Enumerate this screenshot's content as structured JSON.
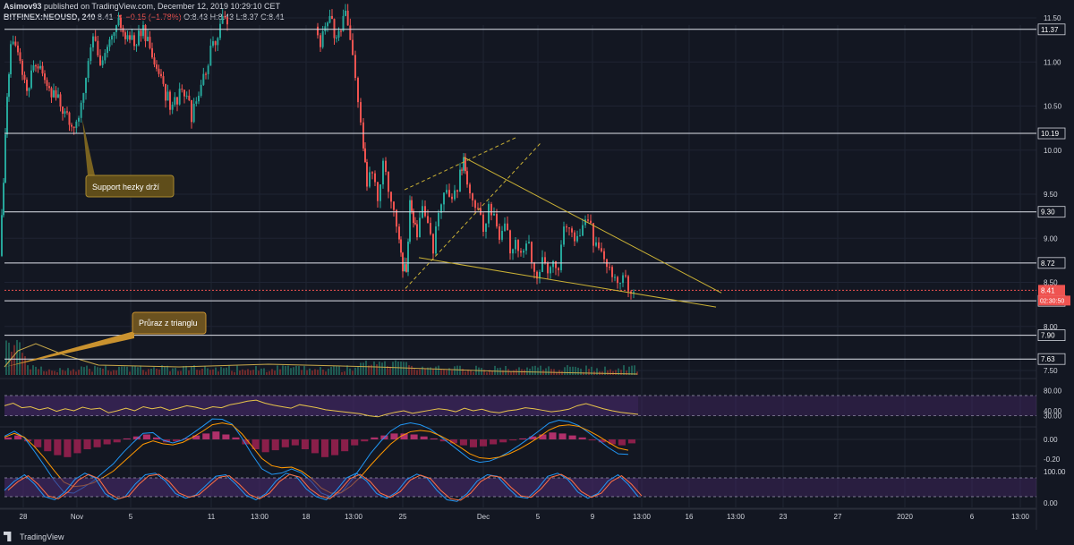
{
  "header": {
    "author": "Asimov93",
    "published": "published on TradingView.com, December 12, 2019 10:29:10 CET",
    "symbol": "BITFINEX:NEOUSD, 240",
    "last": "8.41",
    "change_arrow": "▼",
    "change": "−0.15 (−1.78%)",
    "ohlc": "O:8.43 H:8.43 L:8.37 C:8.41"
  },
  "footer": {
    "brand": "TradingView"
  },
  "colors": {
    "bg": "#131722",
    "up": "#26a69a",
    "down": "#ef5350",
    "line": "#ffffff",
    "trend": "#c9b035",
    "rsi": "#e6c34a",
    "band": "#4a2a6e"
  },
  "chart_data": [
    {
      "type": "candlestick",
      "name": "price",
      "ylim": [
        7.5,
        11.5
      ],
      "y_ticks": [
        "11.50",
        "11.00",
        "10.50",
        "10.00",
        "9.50",
        "9.00",
        "8.50",
        "8.00",
        "7.50"
      ],
      "x_ticks": [
        "28",
        "Nov",
        "5",
        "11",
        "13:00",
        "18",
        "13:00",
        "25",
        "Dec",
        "5",
        "9",
        "13:00",
        "16",
        "13:00",
        "23",
        "27",
        "2020",
        "6",
        "13:00"
      ],
      "levels": [
        "11.37",
        "10.19",
        "9.30",
        "8.72",
        "8.29",
        "7.90",
        "7.63"
      ],
      "last_price": "8.41",
      "countdown": "02:30:50",
      "close_path": [
        [
          0,
          8.8
        ],
        [
          4,
          9.6
        ],
        [
          8,
          10.6
        ],
        [
          12,
          11.2
        ],
        [
          20,
          11.1
        ],
        [
          30,
          10.7
        ],
        [
          40,
          11.0
        ],
        [
          50,
          10.8
        ],
        [
          60,
          10.6
        ],
        [
          70,
          10.5
        ],
        [
          80,
          10.3
        ],
        [
          88,
          10.4
        ],
        [
          96,
          10.9
        ],
        [
          104,
          11.3
        ],
        [
          112,
          10.9
        ],
        [
          120,
          11.2
        ],
        [
          130,
          11.5
        ],
        [
          140,
          11.3
        ],
        [
          150,
          11.2
        ],
        [
          160,
          11.4
        ],
        [
          170,
          11.0
        ],
        [
          180,
          10.8
        ],
        [
          190,
          10.5
        ],
        [
          198,
          10.6
        ],
        [
          206,
          10.7
        ],
        [
          214,
          10.4
        ],
        [
          222,
          10.6
        ],
        [
          230,
          10.9
        ],
        [
          238,
          11.2
        ],
        [
          246,
          11.4
        ],
        [
          254,
          11.5
        ],
        [
          352,
          11.4
        ],
        [
          358,
          11.2
        ],
        [
          366,
          11.5
        ],
        [
          376,
          11.3
        ],
        [
          386,
          11.5
        ],
        [
          394,
          11.0
        ],
        [
          400,
          10.6
        ],
        [
          406,
          10.0
        ],
        [
          410,
          9.6
        ],
        [
          416,
          9.8
        ],
        [
          422,
          9.5
        ],
        [
          428,
          9.9
        ],
        [
          434,
          9.6
        ],
        [
          440,
          9.4
        ],
        [
          446,
          9.0
        ],
        [
          450,
          8.7
        ],
        [
          454,
          8.55
        ],
        [
          458,
          9.4
        ],
        [
          462,
          9.2
        ],
        [
          466,
          9.0
        ],
        [
          472,
          9.3
        ],
        [
          478,
          9.1
        ],
        [
          484,
          8.9
        ],
        [
          490,
          9.3
        ],
        [
          496,
          9.6
        ],
        [
          502,
          9.4
        ],
        [
          508,
          9.5
        ],
        [
          514,
          9.7
        ],
        [
          518,
          9.9
        ],
        [
          522,
          9.6
        ],
        [
          528,
          9.5
        ],
        [
          534,
          9.3
        ],
        [
          540,
          9.1
        ],
        [
          546,
          9.4
        ],
        [
          552,
          9.2
        ],
        [
          558,
          9.0
        ],
        [
          564,
          9.1
        ],
        [
          570,
          8.9
        ],
        [
          576,
          9.0
        ],
        [
          582,
          8.85
        ],
        [
          588,
          8.95
        ],
        [
          594,
          8.8
        ],
        [
          600,
          8.6
        ],
        [
          606,
          8.7
        ],
        [
          612,
          8.65
        ],
        [
          618,
          8.8
        ],
        [
          624,
          8.7
        ],
        [
          630,
          9.1
        ],
        [
          636,
          9.2
        ],
        [
          642,
          9.0
        ],
        [
          648,
          8.95
        ],
        [
          654,
          9.2
        ],
        [
          660,
          9.1
        ],
        [
          666,
          8.9
        ],
        [
          672,
          8.8
        ],
        [
          678,
          8.75
        ],
        [
          684,
          8.6
        ],
        [
          690,
          8.55
        ],
        [
          696,
          8.6
        ],
        [
          702,
          8.45
        ],
        [
          708,
          8.41
        ]
      ],
      "trendlines": [
        {
          "style": "solid",
          "points": [
            [
              518,
              9.92
            ],
            [
              806,
              8.38
            ]
          ]
        },
        {
          "style": "solid",
          "points": [
            [
              468,
              8.78
            ],
            [
              800,
              8.22
            ]
          ]
        },
        {
          "style": "dashed",
          "points": [
            [
              452,
              9.55
            ],
            [
              578,
              10.15
            ]
          ]
        },
        {
          "style": "dashed",
          "points": [
            [
              453,
              8.43
            ],
            [
              604,
              10.08
            ]
          ]
        }
      ],
      "annotations": [
        {
          "text": "Support hezky drží",
          "anchor": [
            92,
            10.35
          ]
        },
        {
          "text": "Průraz z trianglu",
          "anchor": [
            6,
            7.58
          ]
        }
      ]
    },
    {
      "type": "line",
      "name": "RSI",
      "ylim": [
        10,
        100
      ],
      "y_ticks": [
        "80.00",
        "40.00",
        "30.00"
      ],
      "band": [
        30,
        70
      ],
      "values": [
        50,
        55,
        46,
        48,
        42,
        46,
        39,
        44,
        40,
        47,
        43,
        45,
        36,
        40,
        45,
        40,
        48,
        44,
        47,
        41,
        45,
        50,
        47,
        43,
        48,
        46,
        52,
        55,
        59,
        61,
        55,
        51,
        48,
        45,
        52,
        49,
        46,
        42,
        40,
        38,
        36,
        34,
        30,
        28,
        33,
        37,
        40,
        35,
        38,
        41,
        44,
        42,
        38,
        45,
        40,
        43,
        38,
        36,
        40,
        42,
        46,
        44,
        41,
        38,
        40,
        43,
        50,
        54,
        49,
        44,
        40,
        37,
        35,
        33
      ]
    },
    {
      "type": "histogram",
      "name": "MACD",
      "y_ticks": [
        "0.00",
        "-0.20"
      ],
      "values": [
        0.02,
        0.04,
        -0.02,
        -0.08,
        -0.12,
        -0.16,
        -0.18,
        -0.14,
        -0.1,
        -0.08,
        -0.05,
        -0.03,
        0.01,
        0.03,
        0.05,
        0.02,
        -0.03,
        -0.02,
        0.01,
        0.04,
        0.06,
        0.08,
        0.05,
        0.02,
        -0.05,
        -0.1,
        -0.13,
        -0.11,
        -0.08,
        -0.06,
        -0.1,
        -0.14,
        -0.18,
        -0.16,
        -0.12,
        -0.06,
        -0.02,
        0.02,
        0.04,
        0.06,
        0.06,
        0.05,
        0.03,
        0.01,
        -0.02,
        -0.04,
        -0.06,
        -0.08,
        -0.07,
        -0.05,
        -0.03,
        -0.01,
        0.01,
        0.03,
        0.05,
        0.07,
        0.06,
        0.04,
        0.02,
        -0.01,
        -0.03,
        -0.05,
        -0.06,
        -0.04
      ]
    },
    {
      "type": "line",
      "name": "Stoch RSI",
      "ylim": [
        0,
        100
      ],
      "y_ticks": [
        "100.00",
        "0.00"
      ],
      "band": [
        20,
        80
      ],
      "values": [
        40,
        70,
        90,
        60,
        20,
        10,
        35,
        75,
        95,
        80,
        30,
        10,
        20,
        60,
        90,
        95,
        70,
        30,
        15,
        25,
        55,
        85,
        90,
        60,
        25,
        10,
        30,
        70,
        95,
        85,
        45,
        20,
        10,
        40,
        80,
        95,
        70,
        30,
        15,
        35,
        75,
        92,
        80,
        40,
        10,
        5,
        30,
        70,
        90,
        85,
        50,
        20,
        15,
        45,
        85,
        95,
        75,
        35,
        15,
        30,
        70,
        90,
        60,
        20
      ]
    }
  ]
}
